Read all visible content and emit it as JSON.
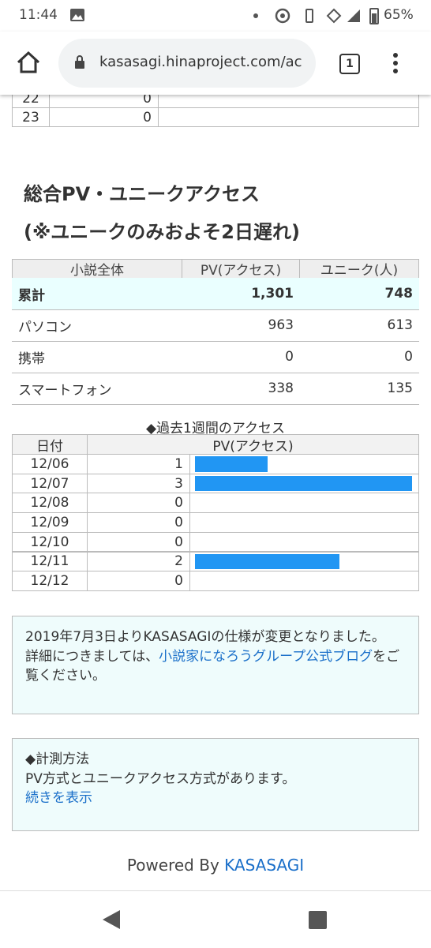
{
  "status_bar": {
    "time": "11:44",
    "battery": "65%"
  },
  "browser": {
    "url": "kasasagi.hinaproject.com/ac",
    "tab_count": "1"
  },
  "prev_table": {
    "rows": [
      [
        "22",
        "0"
      ],
      [
        "23",
        "0"
      ]
    ]
  },
  "section": {
    "title_line1": "総合PV・ユニークアクセス",
    "title_line2": "(※ユニークのみおよそ2日遅れ)"
  },
  "summary_table": {
    "header": [
      "小説全体",
      "PV(アクセス)",
      "ユニーク(人)"
    ],
    "rows": [
      [
        "累計",
        "1,301",
        "748"
      ],
      [
        "パソコン",
        "963",
        "613"
      ],
      [
        "携帯",
        "0",
        "0"
      ],
      [
        "スマートフォン",
        "338",
        "135"
      ]
    ]
  },
  "weekly": {
    "title": "◆過去1週間のアクセス",
    "header": [
      "日付",
      "PV(アクセス)"
    ],
    "bar_color": "#2196f3",
    "rows": [
      {
        "date": "12/06",
        "pv": 1
      },
      {
        "date": "12/07",
        "pv": 3
      },
      {
        "date": "12/08",
        "pv": 0
      },
      {
        "date": "12/09",
        "pv": 0
      },
      {
        "date": "12/10",
        "pv": 0
      },
      {
        "date": "12/11",
        "pv": 2
      },
      {
        "date": "12/12",
        "pv": 0
      }
    ]
  },
  "notice": {
    "text1": "2019年7月3日よりKASASAGIの仕様が変更となりました。",
    "text2": "詳細につきましては、",
    "link": "小説家になろうグループ公式ブログ",
    "text3": "をご覧ください。"
  },
  "method": {
    "title": "◆計測方法",
    "text": "PV方式とユニークアクセス方式があります。",
    "link": "続きを表示"
  },
  "footer": {
    "prefix": "Powered By",
    "link": "KASASAGI"
  }
}
